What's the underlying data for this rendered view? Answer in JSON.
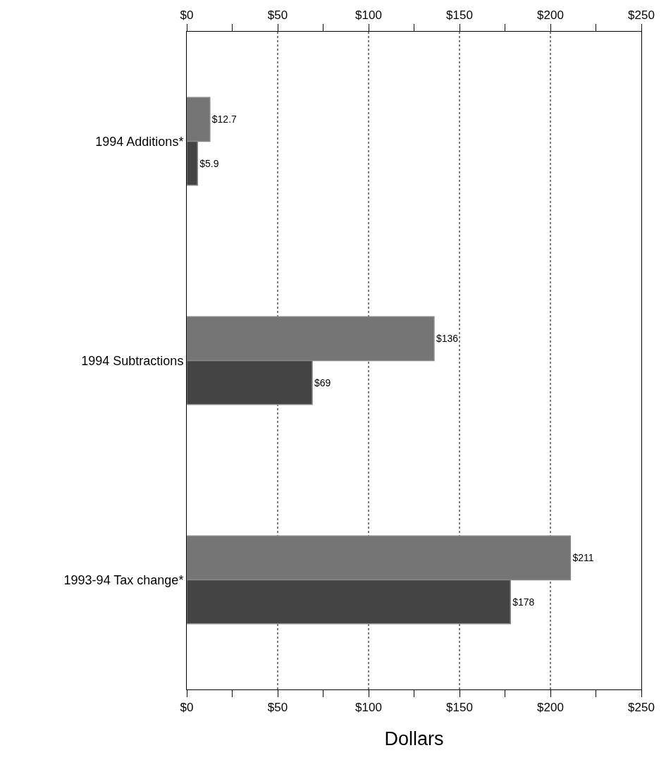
{
  "chart_data": {
    "type": "bar",
    "orientation": "horizontal",
    "xlabel": "Dollars",
    "categories": [
      "1994 Additions*",
      "1994 Subtractions",
      "1993-94 Tax change*"
    ],
    "series": [
      {
        "color": "#757575",
        "values": [
          12.7,
          136,
          211
        ],
        "value_labels": [
          "$12.7",
          "$136",
          "$211"
        ]
      },
      {
        "color": "#444444",
        "values": [
          5.9,
          69,
          178
        ],
        "value_labels": [
          "$5.9",
          "$69",
          "$178"
        ]
      }
    ],
    "xlim": [
      0,
      250
    ],
    "xticks": [
      {
        "value": 0,
        "label": "$0"
      },
      {
        "value": 25,
        "label": null
      },
      {
        "value": 50,
        "label": "$50"
      },
      {
        "value": 75,
        "label": null
      },
      {
        "value": 100,
        "label": "$100"
      },
      {
        "value": 125,
        "label": null
      },
      {
        "value": 150,
        "label": "$150"
      },
      {
        "value": 175,
        "label": null
      },
      {
        "value": 200,
        "label": "$200"
      },
      {
        "value": 225,
        "label": null
      },
      {
        "value": 250,
        "label": "$250"
      }
    ],
    "x2lim": [
      0,
      250
    ],
    "x2ticks": [
      {
        "value": 0,
        "label": "$0"
      },
      {
        "value": 25,
        "label": null
      },
      {
        "value": 50,
        "label": "$50"
      },
      {
        "value": 75,
        "label": null
      },
      {
        "value": 100,
        "label": "$100"
      },
      {
        "value": 125,
        "label": null
      },
      {
        "value": 150,
        "label": "$150"
      },
      {
        "value": 175,
        "label": null
      },
      {
        "value": 200,
        "label": "$200"
      },
      {
        "value": 225,
        "label": null
      },
      {
        "value": 250,
        "label": "$250"
      }
    ],
    "grid": "x"
  }
}
